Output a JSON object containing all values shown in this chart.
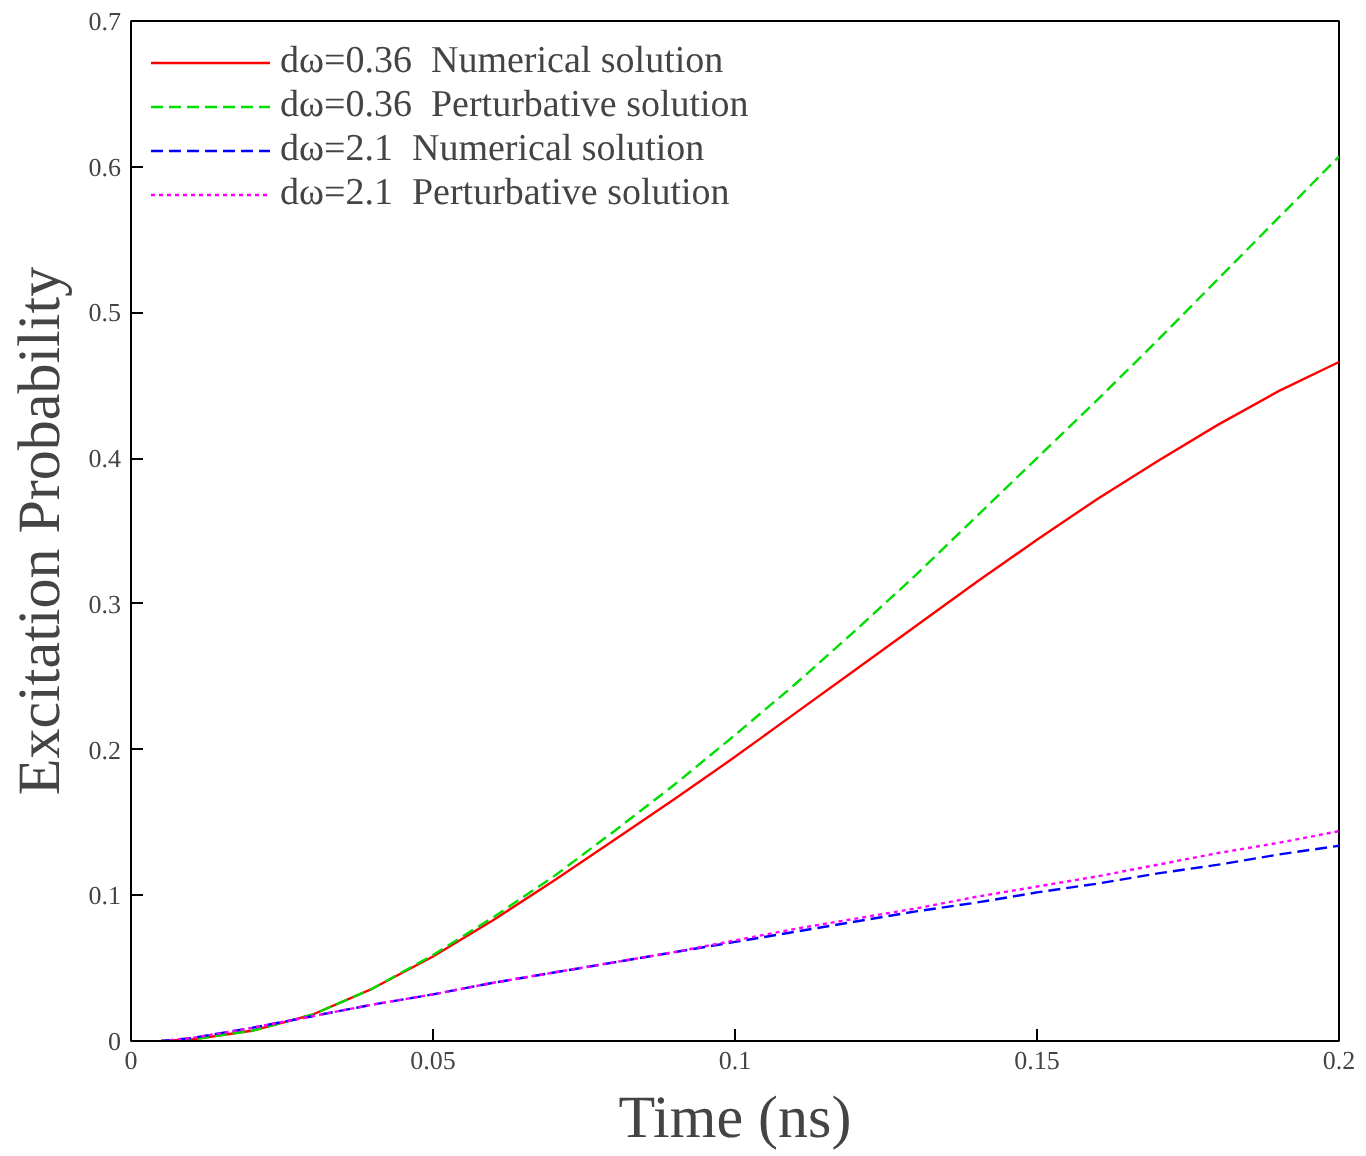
{
  "chart_data": {
    "type": "line",
    "xlabel": "Time (ns)",
    "ylabel": "Excitation Probability",
    "xlim": [
      0,
      0.2
    ],
    "ylim": [
      0,
      0.7
    ],
    "xticks": [
      0,
      0.05,
      0.1,
      0.15,
      0.2
    ],
    "yticks": [
      0,
      0.1,
      0.2,
      0.3,
      0.4,
      0.5,
      0.6,
      0.7
    ],
    "x": [
      0.005,
      0.01,
      0.02,
      0.03,
      0.04,
      0.05,
      0.06,
      0.07,
      0.08,
      0.09,
      0.1,
      0.11,
      0.12,
      0.13,
      0.14,
      0.15,
      0.16,
      0.17,
      0.18,
      0.19,
      0.2
    ],
    "grid": false,
    "legend": "top left",
    "marker": "none",
    "series": [
      {
        "name": "dω=0.36  Numerical solution",
        "color": "#ff0000",
        "line_style": "solid",
        "values": [
          0,
          0.001,
          0.007,
          0.018,
          0.036,
          0.058,
          0.083,
          0.11,
          0.138,
          0.166,
          0.195,
          0.225,
          0.255,
          0.285,
          0.315,
          0.344,
          0.372,
          0.398,
          0.423,
          0.446,
          0.466
        ]
      },
      {
        "name": "dω=0.36  Perturbative solution",
        "color": "#00dd00",
        "line_style": "dashed",
        "values": [
          0,
          0.001,
          0.007,
          0.018,
          0.036,
          0.059,
          0.085,
          0.113,
          0.144,
          0.176,
          0.21,
          0.245,
          0.282,
          0.32,
          0.36,
          0.4,
          0.44,
          0.481,
          0.523,
          0.565,
          0.607
        ]
      },
      {
        "name": "dω=2.1  Numerical solution",
        "color": "#0000ff",
        "line_style": "dashed",
        "values": [
          0,
          0.002,
          0.009,
          0.017,
          0.025,
          0.032,
          0.04,
          0.047,
          0.054,
          0.061,
          0.068,
          0.075,
          0.082,
          0.089,
          0.095,
          0.102,
          0.108,
          0.115,
          0.121,
          0.128,
          0.134
        ]
      },
      {
        "name": "dω=2.1  Perturbative solution",
        "color": "#ff00ff",
        "line_style": "dotted",
        "values": [
          0,
          0.002,
          0.009,
          0.017,
          0.025,
          0.032,
          0.04,
          0.047,
          0.054,
          0.061,
          0.069,
          0.077,
          0.084,
          0.091,
          0.099,
          0.106,
          0.113,
          0.121,
          0.129,
          0.136,
          0.144
        ]
      }
    ]
  }
}
